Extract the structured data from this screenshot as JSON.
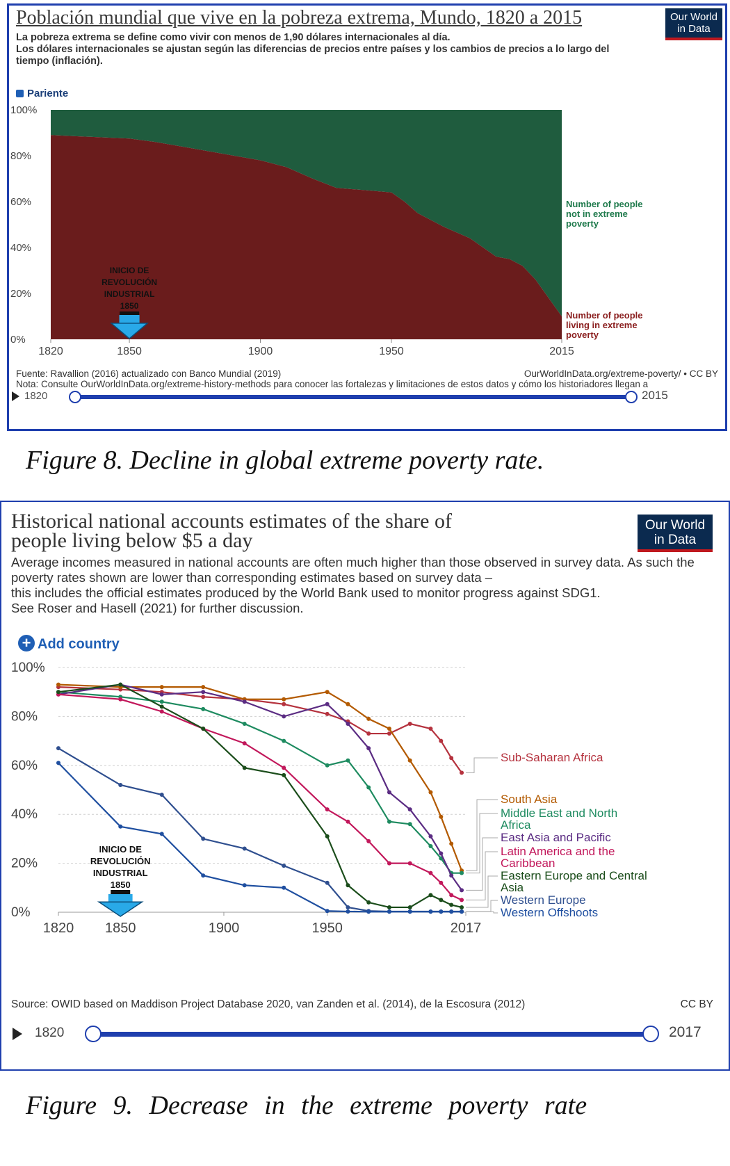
{
  "figure8": {
    "title": "Población mundial que vive en la pobreza extrema, Mundo, 1820 a 2015",
    "subtitle": "La pobreza extrema se define como vivir con menos de 1,90 dólares internacionales al día.\nLos dólares internacionales se ajustan según las diferencias de precios entre países y los cambios de precios a lo largo del tiempo (inflación).",
    "logo": "Our World\nin Data",
    "legend_label": "Pariente",
    "source": "Fuente: Ravallion (2016) actualizado con Banco Mundial (2019)",
    "license": "OurWorldInData.org/extreme-poverty/ • CC BY",
    "note": "Nota: Consulte OurWorldInData.org/extreme-history-methods para conocer las fortalezas y limitaciones de estos datos y cómo los historiadores llegan a",
    "slider_start": "1820",
    "slider_end": "2015",
    "caption": "Figure 8. Decline in global extreme poverty rate."
  },
  "figure9": {
    "title": "Historical national accounts estimates of the share of\npeople living below $5 a day",
    "subtitle": "Average incomes measured in national accounts are often much higher than those observed in survey data. As such the poverty rates shown are lower than corresponding estimates based on survey data –\nthis includes the official estimates produced by the World Bank used to monitor progress against SDG1.\nSee Roser and Hasell (2021) for further discussion.",
    "logo": "Our World\nin Data",
    "add_country": "Add country",
    "source": "Source: OWID based on Maddison Project Database 2020, van Zanden et al. (2014), de la Escosura (2012)",
    "license": "CC BY",
    "slider_start": "1820",
    "slider_end": "2017",
    "caption": "Figure 9. Decrease in the extreme poverty rate"
  },
  "colors": {
    "poverty": "#6a1c1c",
    "not_poverty": "#1f5c3e",
    "frame": "#1f3fae",
    "arrow": "#29a9e8"
  },
  "chart_data": [
    {
      "type": "area",
      "stacked": true,
      "x": [
        1820,
        1830,
        1840,
        1850,
        1860,
        1870,
        1880,
        1890,
        1900,
        1910,
        1920,
        1929,
        1940,
        1950,
        1955,
        1960,
        1970,
        1980,
        1985,
        1990,
        1995,
        2000,
        2005,
        2010,
        2015
      ],
      "series": [
        {
          "name": "Number of people living in extreme poverty",
          "color": "#6a1c1c",
          "values": [
            89,
            88.5,
            88,
            87.5,
            86,
            84,
            82,
            80,
            78,
            75,
            70,
            66,
            65,
            64,
            60,
            55,
            49,
            44,
            40,
            36,
            35,
            32,
            26,
            18,
            10
          ]
        },
        {
          "name": "Number of people not in extreme poverty",
          "color": "#1f5c3e",
          "values": [
            11,
            11.5,
            12,
            12.5,
            14,
            16,
            18,
            20,
            22,
            25,
            30,
            34,
            35,
            36,
            40,
            45,
            51,
            56,
            60,
            64,
            65,
            68,
            74,
            82,
            90
          ]
        }
      ],
      "xlim": [
        1820,
        2015
      ],
      "ylim": [
        0,
        100
      ],
      "yticks": [
        "0%",
        "20%",
        "40%",
        "60%",
        "80%",
        "100%"
      ],
      "xticks": [
        "1820",
        "1850",
        "1900",
        "1950",
        "2015"
      ],
      "legend_placement": "right",
      "annotation": {
        "x": 1850,
        "text": "INICIO DE\nREVOLUCIÓN\nINDUSTRIAL\n1850"
      }
    },
    {
      "type": "line",
      "x": [
        1820,
        1850,
        1870,
        1890,
        1910,
        1929,
        1950,
        1960,
        1970,
        1980,
        1990,
        2000,
        2005,
        2010,
        2015
      ],
      "series": [
        {
          "name": "Sub-Saharan Africa",
          "color": "#b5323e",
          "values": [
            92,
            91,
            90,
            88,
            87,
            85,
            81,
            78,
            73,
            73,
            77,
            75,
            70,
            63,
            57
          ]
        },
        {
          "name": "South Asia",
          "color": "#b35a00",
          "values": [
            93,
            92,
            92,
            92,
            87,
            87,
            90,
            85,
            79,
            75,
            62,
            49,
            39,
            28,
            17
          ]
        },
        {
          "name": "Middle East and North Africa",
          "color": "#1e8b60",
          "values": [
            90,
            88,
            86,
            83,
            77,
            70,
            60,
            62,
            51,
            37,
            36,
            27,
            22,
            16,
            16
          ]
        },
        {
          "name": "East Asia and Pacific",
          "color": "#5b2c83",
          "values": [
            89,
            93,
            89,
            90,
            86,
            80,
            85,
            77,
            67,
            49,
            42,
            31,
            24,
            15,
            9
          ]
        },
        {
          "name": "Latin America and the Caribbean",
          "color": "#c2185b",
          "values": [
            89,
            87,
            82,
            75,
            69,
            59,
            42,
            37,
            29,
            20,
            20,
            16,
            12,
            7,
            5
          ]
        },
        {
          "name": "Eastern Europe and Central Asia",
          "color": "#1b4d1b",
          "values": [
            90,
            93,
            84,
            75,
            59,
            56,
            31,
            11,
            4,
            2,
            2,
            7,
            5,
            3,
            2
          ]
        },
        {
          "name": "Western Europe",
          "color": "#2f4f8f",
          "values": [
            67,
            52,
            48,
            30,
            26,
            19,
            12,
            2,
            0.5,
            0.3,
            0.3,
            0.3,
            0.3,
            0.3,
            0.3
          ]
        },
        {
          "name": "Western Offshoots",
          "color": "#1f4fa0",
          "values": [
            61,
            35,
            32,
            15,
            11,
            10,
            0.5,
            0.3,
            0.2,
            0.2,
            0.2,
            0.2,
            0.2,
            0.2,
            0.2
          ]
        }
      ],
      "xlim": [
        1820,
        2017
      ],
      "ylim": [
        0,
        100
      ],
      "yticks": [
        "0%",
        "20%",
        "40%",
        "60%",
        "80%",
        "100%"
      ],
      "xticks": [
        "1820",
        "1850",
        "1900",
        "1950",
        "2017"
      ],
      "grid": true,
      "legend_placement": "right",
      "annotation": {
        "x": 1850,
        "text": "INICIO DE\nREVOLUCIÓN\nINDUSTRIAL\n1850"
      }
    }
  ]
}
